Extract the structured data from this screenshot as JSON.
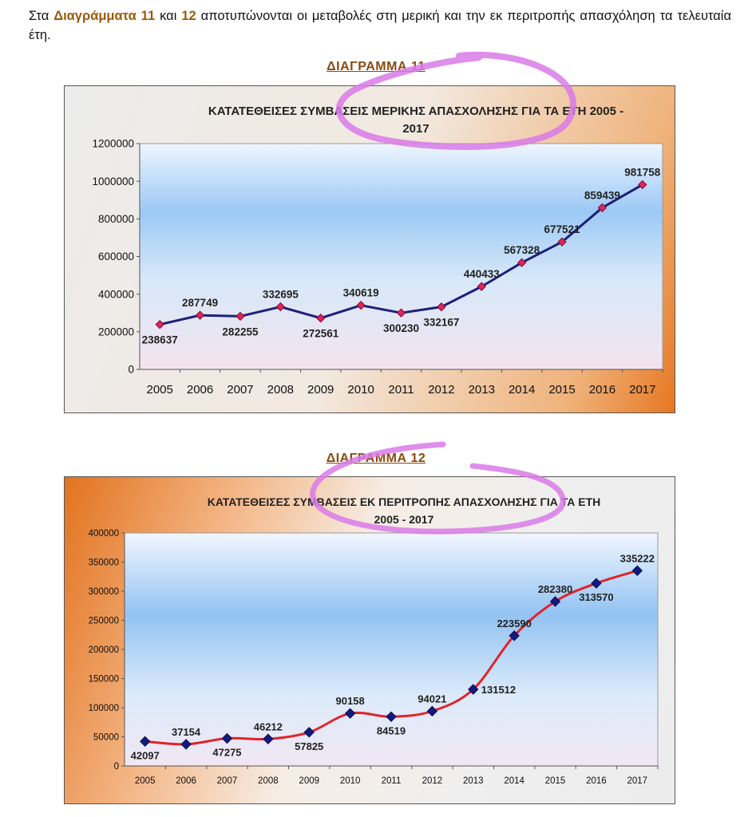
{
  "intro": {
    "p1": "Στα ",
    "h1": "Διαγράμματα 11",
    "p2": " και ",
    "h2": "12",
    "p3": " αποτυπώνονται οι μεταβολές στη μερική και την εκ περιτροπής απασχόληση τα τελευταία έτη."
  },
  "colors": {
    "line1": "#1c1f7a",
    "marker1": "#e0245e",
    "line2": "#e0242a",
    "marker2": "#131a80",
    "highlighter": "#d97ae8"
  },
  "chart_data": [
    {
      "caption": "ΔΙΑΓΡΑΜΜΑ 11",
      "type": "line",
      "title_lines": [
        "ΚΑΤΑΤΕΘΕΙΣΕΣ ΣΥΜΒΑΣΕΙΣ ΜΕΡΙΚΗΣ ΑΠΑΣΧΟΛΗΣΗΣ ΓΙΑ ΤΑ ΕΤΗ 2005 -",
        "2017"
      ],
      "x": [
        "2005",
        "2006",
        "2007",
        "2008",
        "2009",
        "2010",
        "2011",
        "2012",
        "2013",
        "2014",
        "2015",
        "2016",
        "2017"
      ],
      "values": [
        238637,
        287749,
        282255,
        332695,
        272561,
        340619,
        300230,
        332167,
        440433,
        567328,
        677521,
        859439,
        981758
      ],
      "labels": [
        "238637",
        "287749",
        "282255",
        "332695",
        "272561",
        "340619",
        "300230",
        "332167",
        "440433",
        "567328",
        "677521",
        "859439",
        "981758"
      ],
      "label_pos": [
        "below",
        "above",
        "below",
        "above",
        "below",
        "above",
        "below",
        "below",
        "above",
        "above",
        "above",
        "above",
        "above"
      ],
      "ylim": [
        0,
        1200000
      ],
      "yticks": [
        0,
        200000,
        400000,
        600000,
        800000,
        1000000,
        1200000
      ],
      "ytick_labels": [
        "0",
        "200000",
        "400000",
        "600000",
        "800000",
        "1000000",
        "1200000"
      ],
      "marker": "diamond",
      "grid": false
    },
    {
      "caption": "ΔΙΑΓΡΑΜΜΑ 12",
      "type": "line",
      "title_lines": [
        "ΚΑΤΑΤΕΘΕΙΣΕΣ ΣΥΜΒΑΣΕΙΣ ΕΚ ΠΕΡΙΤΡΟΠΗΣ ΑΠΑΣΧΟΛΗΣΗΣ ΓΙΑ ΤΑ ΕΤΗ",
        "2005 - 2017"
      ],
      "x": [
        "2005",
        "2006",
        "2007",
        "2008",
        "2009",
        "2010",
        "2011",
        "2012",
        "2013",
        "2014",
        "2015",
        "2016",
        "2017"
      ],
      "values": [
        42097,
        37154,
        47275,
        46212,
        57825,
        90158,
        84519,
        94021,
        131512,
        223590,
        282380,
        313570,
        335222
      ],
      "labels": [
        "42097",
        "37154",
        "47275",
        "46212",
        "57825",
        "90158",
        "84519",
        "94021",
        "131512",
        "223590",
        "282380",
        "313570",
        "335222"
      ],
      "label_pos": [
        "below",
        "above",
        "below",
        "above",
        "below",
        "above",
        "below",
        "above",
        "right",
        "above",
        "above",
        "below",
        "above"
      ],
      "ylim": [
        0,
        400000
      ],
      "yticks": [
        0,
        50000,
        100000,
        150000,
        200000,
        250000,
        300000,
        350000,
        400000
      ],
      "ytick_labels": [
        "0",
        "50000",
        "100000",
        "150000",
        "200000",
        "250000",
        "300000",
        "350000",
        "400000"
      ],
      "marker": "diamond",
      "grid": false
    }
  ]
}
